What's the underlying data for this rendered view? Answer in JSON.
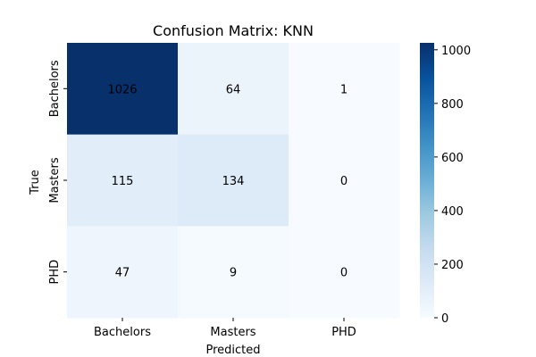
{
  "chart_data": {
    "type": "heatmap",
    "title": "Confusion Matrix: KNN",
    "xlabel": "Predicted",
    "ylabel": "True",
    "x_categories": [
      "Bachelors",
      "Masters",
      "PHD"
    ],
    "y_categories": [
      "Bachelors",
      "Masters",
      "PHD"
    ],
    "matrix": [
      [
        1026,
        64,
        1
      ],
      [
        115,
        134,
        0
      ],
      [
        47,
        9,
        0
      ]
    ],
    "colorbar": {
      "min": 0,
      "max": 1026,
      "ticks": [
        0,
        200,
        400,
        600,
        800,
        1000
      ],
      "colormap": "Blues"
    }
  }
}
